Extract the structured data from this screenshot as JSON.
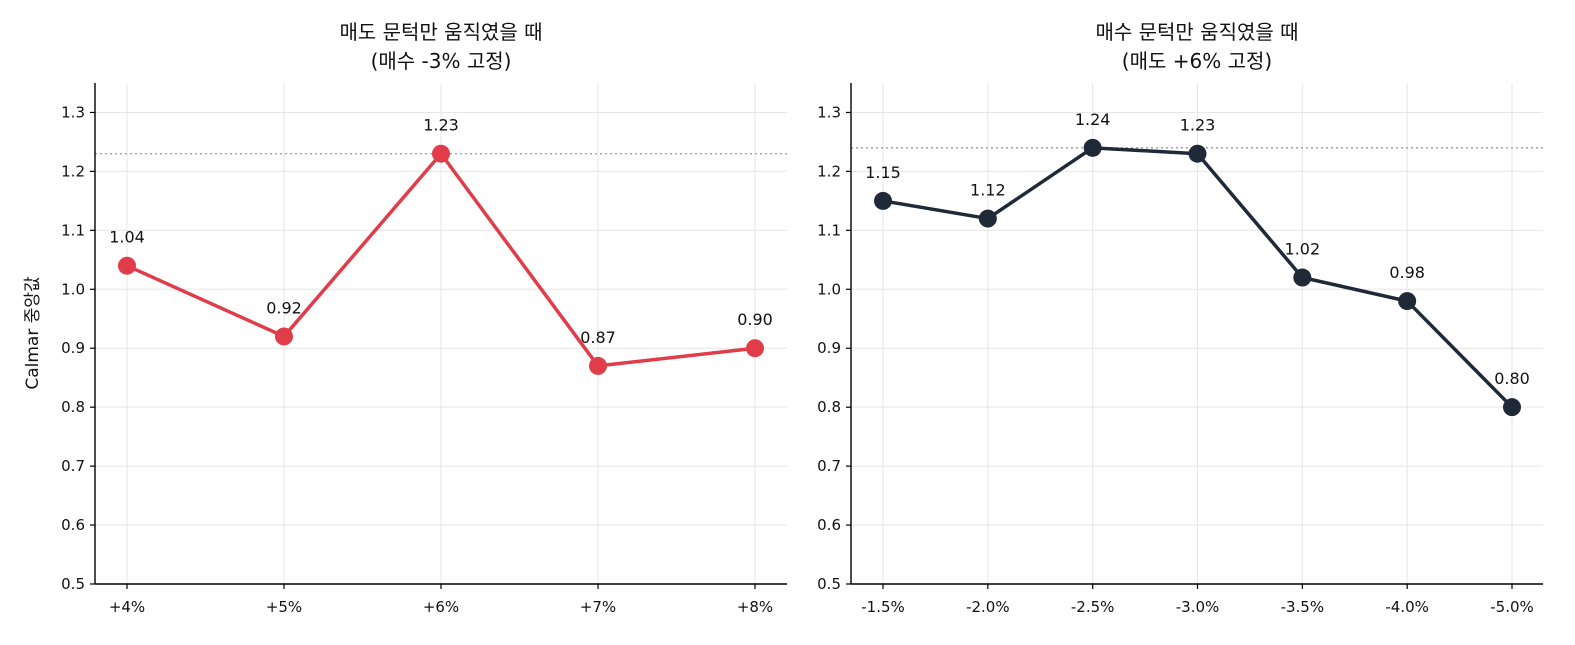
{
  "figure": {
    "ylabel": "Calmar 중앙값"
  },
  "chart_data": [
    {
      "type": "line",
      "title": "매도 문턱만 움직였을 때",
      "subtitle": "(매수 -3% 고정)",
      "ylabel": "Calmar 중앙값",
      "xlabel": "",
      "categories": [
        "+4%",
        "+5%",
        "+6%",
        "+7%",
        "+8%"
      ],
      "values": [
        1.04,
        0.92,
        1.23,
        0.87,
        0.9
      ],
      "point_labels": [
        "1.04",
        "0.92",
        "1.23",
        "0.87",
        "0.90"
      ],
      "ylim": [
        0.5,
        1.35
      ],
      "yticks": [
        0.5,
        0.6,
        0.7,
        0.8,
        0.9,
        1.0,
        1.1,
        1.2,
        1.3
      ],
      "ytick_labels": [
        "0.5",
        "0.6",
        "0.7",
        "0.8",
        "0.9",
        "1.0",
        "1.1",
        "1.2",
        "1.3"
      ],
      "reference_line": 1.23,
      "color": "#e03c4a",
      "grid": true,
      "legend": "none"
    },
    {
      "type": "line",
      "title": "매수 문턱만 움직였을 때",
      "subtitle": "(매도 +6% 고정)",
      "ylabel": "",
      "xlabel": "",
      "categories": [
        "-1.5%",
        "-2.0%",
        "-2.5%",
        "-3.0%",
        "-3.5%",
        "-4.0%",
        "-5.0%"
      ],
      "values": [
        1.15,
        1.12,
        1.24,
        1.23,
        1.02,
        0.98,
        0.8
      ],
      "point_labels": [
        "1.15",
        "1.12",
        "1.24",
        "1.23",
        "1.02",
        "0.98",
        "0.80"
      ],
      "ylim": [
        0.5,
        1.35
      ],
      "yticks": [
        0.5,
        0.6,
        0.7,
        0.8,
        0.9,
        1.0,
        1.1,
        1.2,
        1.3
      ],
      "ytick_labels": [
        "0.5",
        "0.6",
        "0.7",
        "0.8",
        "0.9",
        "1.0",
        "1.1",
        "1.2",
        "1.3"
      ],
      "reference_line": 1.24,
      "color": "#1f2937",
      "grid": true,
      "legend": "none"
    }
  ]
}
